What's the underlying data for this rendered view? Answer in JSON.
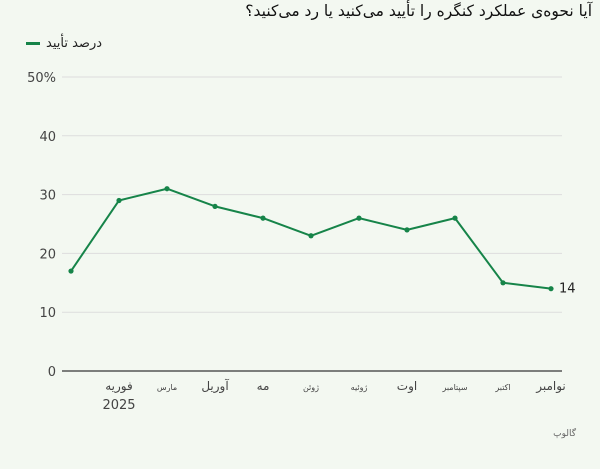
{
  "title": "آیا نحوه‌ی عملکرد کنگره را تأیید می‌کنید یا رد می‌کنید؟",
  "source": "گالوپ",
  "colors": {
    "line": "#168449",
    "grid": "#dddddd",
    "axis": "#555555",
    "background": "#f3f8f1"
  },
  "chart_data": {
    "type": "line",
    "title": "آیا نحوه‌ی عملکرد کنگره را تأیید می‌کنید یا رد می‌کنید؟",
    "categories": [
      "",
      "فوریه",
      "مارس",
      "آوریل",
      "مه",
      "ژوئن",
      "ژوئیه",
      "اوت",
      "سپتامبر",
      "اکتبر",
      "نوامبر"
    ],
    "year_label": "2025",
    "series": [
      {
        "name": "درصد تأیید",
        "values": [
          17,
          29,
          31,
          28,
          26,
          23,
          26,
          24,
          26,
          15,
          14
        ]
      }
    ],
    "y_ticks": [
      "0",
      "10",
      "20",
      "30",
      "40",
      "50%"
    ],
    "ylim": [
      0,
      50
    ],
    "end_label": "14",
    "grid": true,
    "legend": "top-left"
  }
}
